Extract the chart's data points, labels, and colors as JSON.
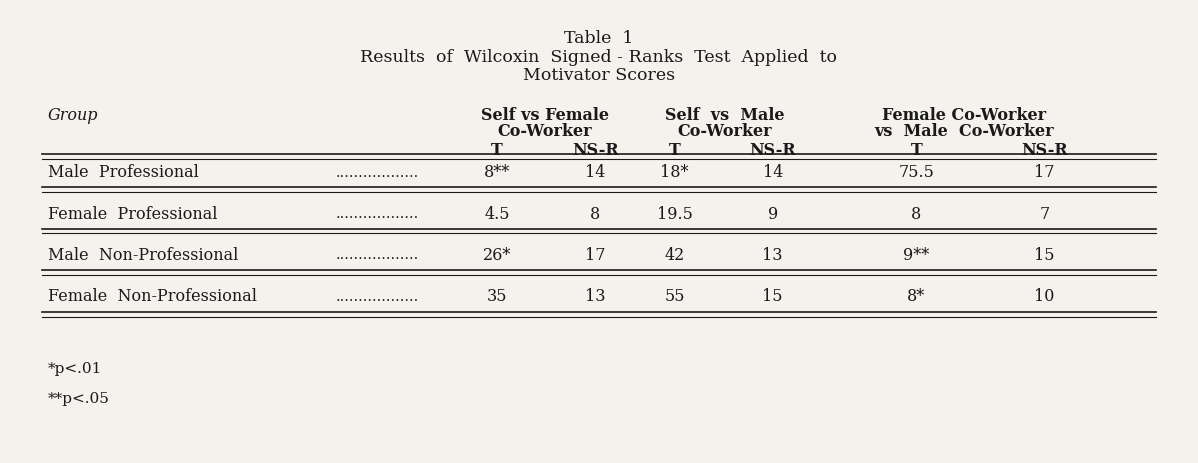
{
  "title_line1": "Table  1",
  "title_line2": "Results  of  Wilcoxin  Signed - Ranks  Test  Applied  to",
  "title_line3": "Motivator Scores",
  "col_header_group": "Group",
  "col_headers": [
    [
      "Self vs Female",
      "Co-Worker",
      "T",
      "NS-R"
    ],
    [
      "Self  vs  Male",
      "Co-Worker",
      "T",
      "NS-R"
    ],
    [
      "Female Co-Worker",
      "vs  Male  Co-Worker",
      "T",
      "NS-R"
    ]
  ],
  "rows": [
    {
      "group": "Male  Professional",
      "dots": true,
      "values": [
        "8**",
        "14",
        "18*",
        "14",
        "75.5",
        "17"
      ]
    },
    {
      "group": "Female  Professional",
      "dots": true,
      "values": [
        "4.5",
        "8",
        "19.5",
        "9",
        "8",
        "7"
      ]
    },
    {
      "group": "Male  Non-Professional",
      "dots": true,
      "values": [
        "26*",
        "17",
        "42",
        "13",
        "9**",
        "15"
      ]
    },
    {
      "group": "Female  Non-Professional",
      "dots": true,
      "values": [
        "35",
        "13",
        "55",
        "15",
        "8*",
        "10"
      ]
    }
  ],
  "footnotes": [
    "*p<.01",
    "**p<.05"
  ],
  "bg_color": "#f5f2ed",
  "text_color": "#1a1a1a",
  "font_size": 11.5,
  "title_font_size": 12.5
}
